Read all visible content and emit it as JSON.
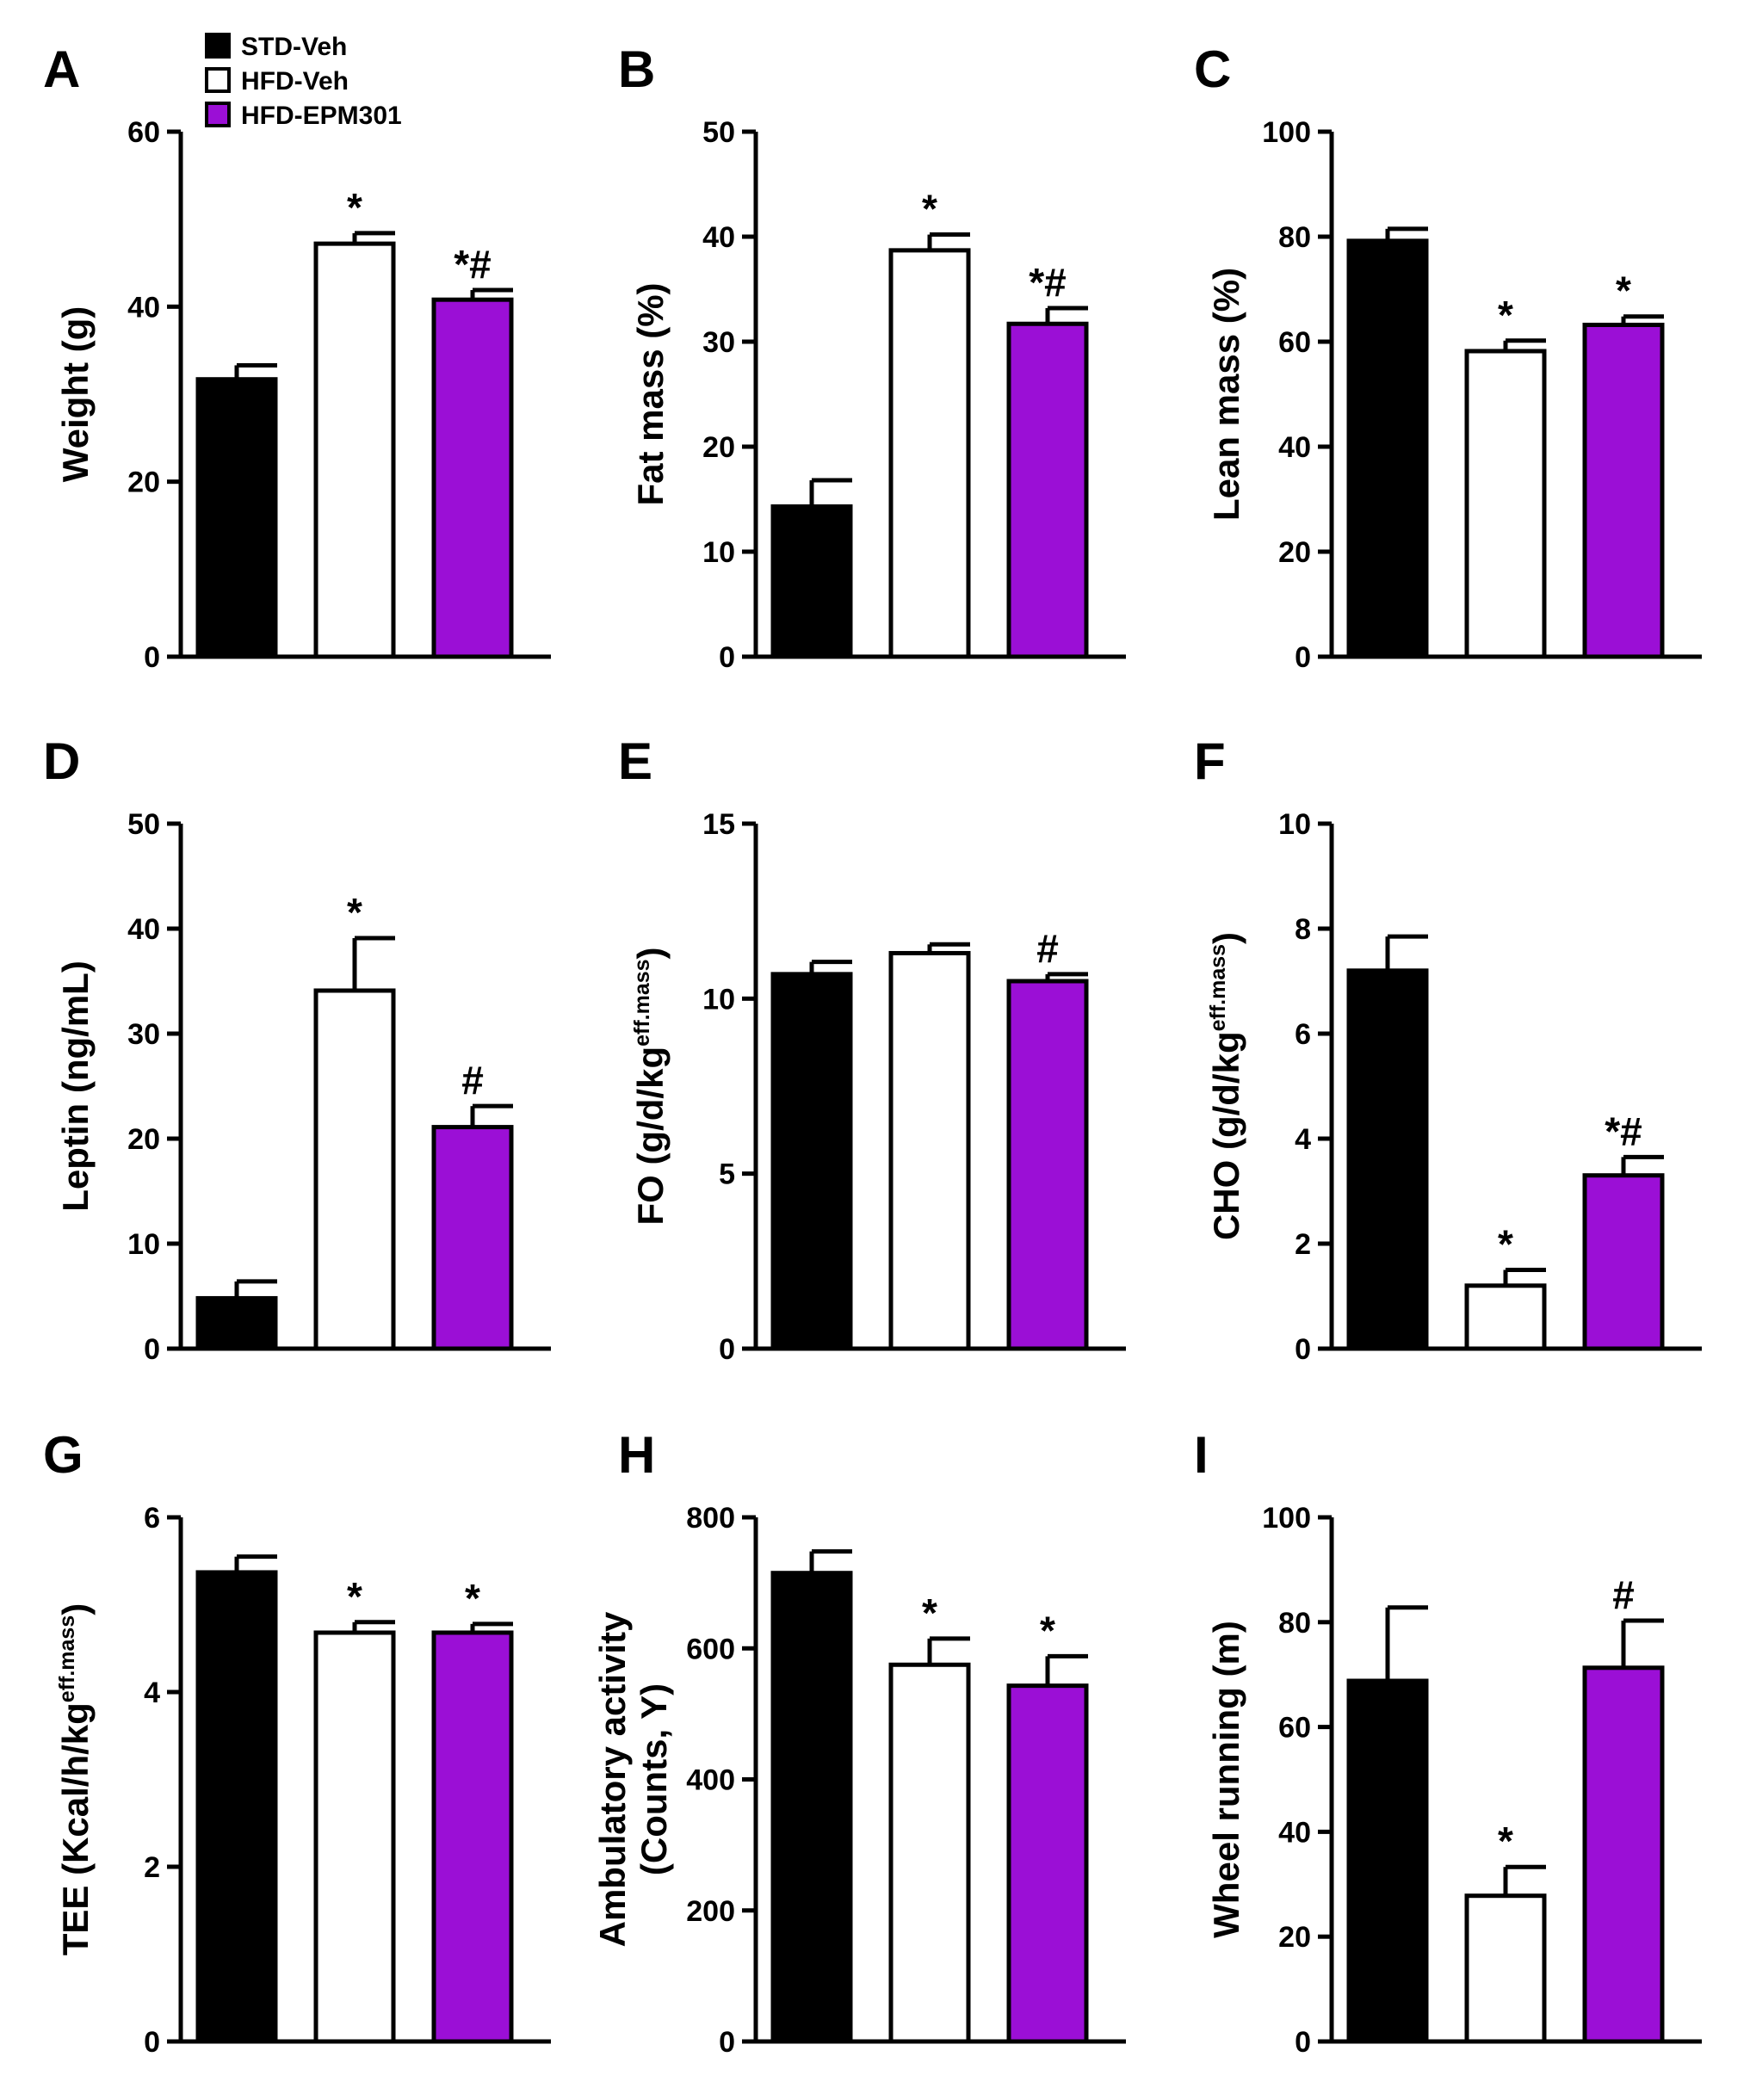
{
  "groups": [
    "STD-Veh",
    "HFD-Veh",
    "HFD-EPM301"
  ],
  "colors": {
    "STD-Veh": "#000000",
    "HFD-Veh": "#ffffff",
    "HFD-EPM301": "#9b0fd6"
  },
  "chart_data": [
    {
      "type": "bar",
      "panel": "A",
      "ylabel": [
        "Weight (g)"
      ],
      "ylim": [
        0,
        60
      ],
      "yticks": [
        0,
        20,
        40,
        60
      ],
      "categories": [
        "STD-Veh",
        "HFD-Veh",
        "HFD-EPM301"
      ],
      "values": [
        31.7,
        47.2,
        40.8
      ],
      "errors": [
        1.6,
        1.2,
        1.1
      ],
      "annotations": [
        "",
        "*",
        "*#"
      ]
    },
    {
      "type": "bar",
      "panel": "B",
      "ylabel": [
        "Fat mass  (%)"
      ],
      "ylim": [
        0,
        50
      ],
      "yticks": [
        0,
        10,
        20,
        30,
        40,
        50
      ],
      "categories": [
        "STD-Veh",
        "HFD-Veh",
        "HFD-EPM301"
      ],
      "values": [
        14.3,
        38.7,
        31.7
      ],
      "errors": [
        2.5,
        1.5,
        1.5
      ],
      "annotations": [
        "",
        "*",
        "*#"
      ]
    },
    {
      "type": "bar",
      "panel": "C",
      "ylabel": [
        "Lean mass  (%)"
      ],
      "ylim": [
        0,
        100
      ],
      "yticks": [
        0,
        20,
        40,
        60,
        80,
        100
      ],
      "categories": [
        "STD-Veh",
        "HFD-Veh",
        "HFD-EPM301"
      ],
      "values": [
        79.2,
        58.2,
        63.2
      ],
      "errors": [
        2.3,
        2.0,
        1.6
      ],
      "annotations": [
        "",
        "*",
        "*"
      ]
    },
    {
      "type": "bar",
      "panel": "D",
      "ylabel": [
        "Leptin (ng/mL)"
      ],
      "ylim": [
        0,
        50
      ],
      "yticks": [
        0,
        10,
        20,
        30,
        40,
        50
      ],
      "categories": [
        "STD-Veh",
        "HFD-Veh",
        "HFD-EPM301"
      ],
      "values": [
        4.8,
        34.1,
        21.1
      ],
      "errors": [
        1.6,
        5.0,
        2.0
      ],
      "annotations": [
        "",
        "*",
        "#"
      ]
    },
    {
      "type": "bar",
      "panel": "E",
      "ylabel": [
        "FO (g/d/kg",
        "eff.mass",
        ")"
      ],
      "ylim": [
        0,
        15
      ],
      "yticks": [
        0,
        5,
        10,
        15
      ],
      "categories": [
        "STD-Veh",
        "HFD-Veh",
        "HFD-EPM301"
      ],
      "values": [
        10.7,
        11.3,
        10.5
      ],
      "errors": [
        0.35,
        0.25,
        0.2
      ],
      "annotations": [
        "",
        "",
        "#"
      ]
    },
    {
      "type": "bar",
      "panel": "F",
      "ylabel": [
        "CHO (g/d/kg",
        "eff.mass",
        ")"
      ],
      "ylim": [
        0,
        10
      ],
      "yticks": [
        0,
        2,
        4,
        6,
        8,
        10
      ],
      "categories": [
        "STD-Veh",
        "HFD-Veh",
        "HFD-EPM301"
      ],
      "values": [
        7.2,
        1.2,
        3.3
      ],
      "errors": [
        0.65,
        0.3,
        0.35
      ],
      "annotations": [
        "",
        "*",
        "*#"
      ]
    },
    {
      "type": "bar",
      "panel": "G",
      "ylabel": [
        "TEE (Kcal/h/kg",
        "eff.mass",
        ")"
      ],
      "ylim": [
        0,
        6
      ],
      "yticks": [
        0,
        2,
        4,
        6
      ],
      "categories": [
        "STD-Veh",
        "HFD-Veh",
        "HFD-EPM301"
      ],
      "values": [
        5.37,
        4.68,
        4.68
      ],
      "errors": [
        0.18,
        0.12,
        0.1
      ],
      "annotations": [
        "",
        "*",
        "*"
      ]
    },
    {
      "type": "bar",
      "panel": "H",
      "ylabel": [
        "Ambulatory activity",
        "(Counts, Y)"
      ],
      "ylim": [
        0,
        800
      ],
      "yticks": [
        0,
        200,
        400,
        600,
        800
      ],
      "categories": [
        "STD-Veh",
        "HFD-Veh",
        "HFD-EPM301"
      ],
      "values": [
        715,
        575,
        543
      ],
      "errors": [
        33,
        40,
        45
      ],
      "annotations": [
        "",
        "*",
        "*"
      ]
    },
    {
      "type": "bar",
      "panel": "I",
      "ylabel": [
        "Wheel running (m)"
      ],
      "ylim": [
        0,
        100
      ],
      "yticks": [
        0,
        20,
        40,
        60,
        80,
        100
      ],
      "categories": [
        "STD-Veh",
        "HFD-Veh",
        "HFD-EPM301"
      ],
      "values": [
        68.8,
        27.8,
        71.3
      ],
      "errors": [
        14.0,
        5.5,
        9.0
      ],
      "annotations": [
        "",
        "*",
        "#"
      ]
    }
  ]
}
